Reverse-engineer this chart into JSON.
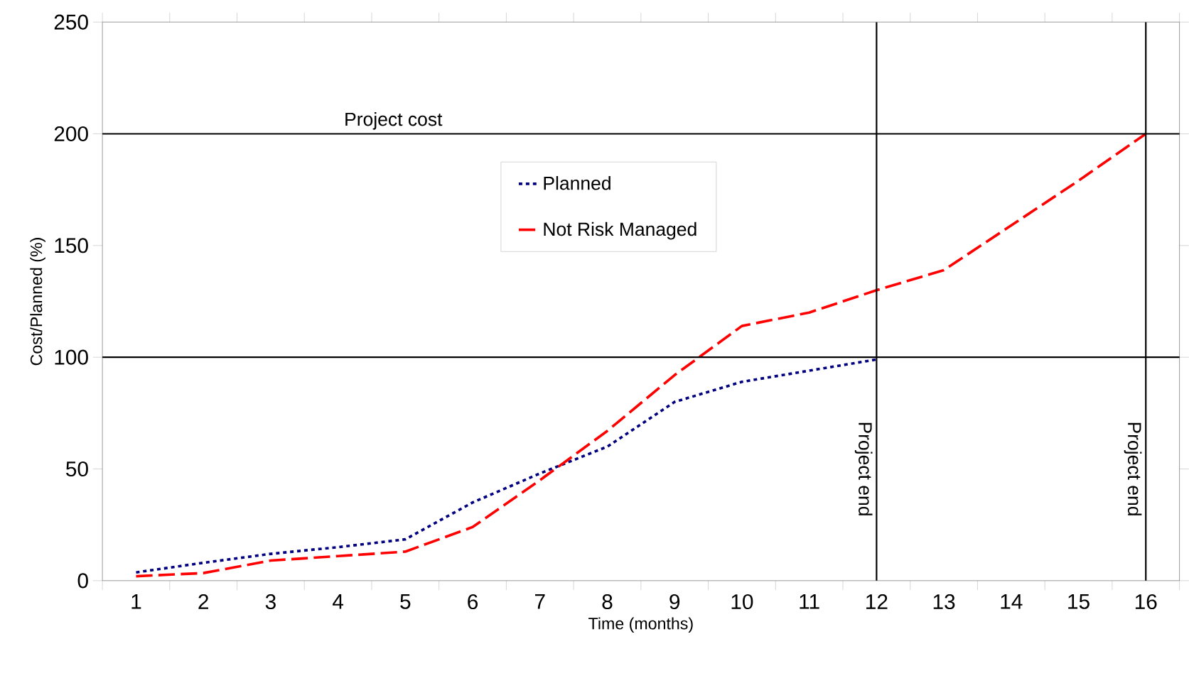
{
  "chart_data": {
    "type": "line",
    "xlabel": "Time (months)",
    "ylabel": "Cost/Planned (%)",
    "x": [
      1,
      2,
      3,
      4,
      5,
      6,
      7,
      8,
      9,
      10,
      11,
      12,
      13,
      14,
      15,
      16
    ],
    "series": [
      {
        "name": "Planned",
        "color": "#000080",
        "line_style": "dotted",
        "values": [
          3.7,
          8,
          12,
          15,
          18.5,
          35,
          48,
          60,
          80,
          89,
          94,
          99,
          null,
          null,
          null,
          null
        ]
      },
      {
        "name": "Not Risk Managed",
        "color": "#ff0000",
        "line_style": "dashed",
        "values": [
          2,
          3.4,
          9,
          11,
          13,
          24,
          45,
          67,
          92,
          114,
          120,
          130,
          139,
          159,
          179,
          200
        ]
      }
    ],
    "xlim": [
      0.5,
      16.5
    ],
    "xticks": [
      1,
      2,
      3,
      4,
      5,
      6,
      7,
      8,
      9,
      10,
      11,
      12,
      13,
      14,
      15,
      16
    ],
    "ylim": [
      0,
      250
    ],
    "yticks": [
      0,
      50,
      100,
      150,
      200,
      250
    ],
    "ref_lines": [
      {
        "axis": "y",
        "value": 200,
        "label": "Project cost",
        "color": "#000000"
      },
      {
        "axis": "y",
        "value": 100,
        "label": null,
        "color": "#000000"
      },
      {
        "axis": "x",
        "value": 12,
        "label": "Project end",
        "color": "#000000"
      },
      {
        "axis": "x",
        "value": 16,
        "label": "Project end",
        "color": "#000000"
      }
    ],
    "legend": "top",
    "grid": false,
    "marker": "none"
  }
}
